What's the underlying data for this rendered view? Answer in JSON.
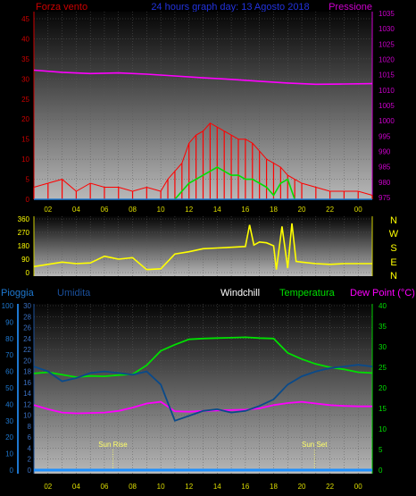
{
  "header": {
    "wind_title": "Forza vento",
    "date_title": "24 hours graph day:  13 Agosto  2018",
    "pressure_title": "Pressione"
  },
  "compass_labels": [
    "N",
    "W",
    "S",
    "E",
    "N"
  ],
  "bottom_headers": {
    "rain": "Pioggia",
    "humidity": "Umidita",
    "windchill": "Windchill",
    "temperature": "Temperatura",
    "dewpoint": "Dew Point (°C)"
  },
  "annotations": {
    "sunrise": "Sun Rise",
    "sunset": "Sun Set"
  },
  "colors": {
    "wind": "#ff0000",
    "gust_avg": "#00e000",
    "pressure": "#ff00ff",
    "direction": "#ffff00",
    "humidity": "#0a4a8a",
    "temperature": "#00e000",
    "dewpoint": "#ff00ff",
    "rain": "#1e90ff",
    "axis_left": "#cc0000",
    "axis_right": "#cc00cc",
    "axis_blue": "#1e78d0"
  },
  "chart_data": [
    {
      "type": "line",
      "name": "wind-and-pressure",
      "x_ticks": [
        "02",
        "04",
        "06",
        "08",
        "10",
        "12",
        "14",
        "16",
        "18",
        "20",
        "22",
        "00"
      ],
      "y_left_ticks": [
        "0",
        "5",
        "10",
        "15",
        "20",
        "25",
        "30",
        "35",
        "40",
        "45"
      ],
      "y_left_range": [
        0,
        45
      ],
      "y_right_ticks": [
        "975",
        "980",
        "985",
        "990",
        "995",
        "1000",
        "1005",
        "1010",
        "1015",
        "1020",
        "1025",
        "1030",
        "1035"
      ],
      "y_right_range": [
        975,
        1035
      ],
      "x_range": [
        1,
        25
      ],
      "series": [
        {
          "name": "wind_speed",
          "values": [
            [
              1,
              3
            ],
            [
              2,
              4
            ],
            [
              3,
              5
            ],
            [
              4,
              2
            ],
            [
              5,
              4
            ],
            [
              6,
              3
            ],
            [
              7,
              3
            ],
            [
              8,
              2
            ],
            [
              9,
              3
            ],
            [
              10,
              2
            ],
            [
              10.5,
              5
            ],
            [
              11,
              7
            ],
            [
              11.5,
              9
            ],
            [
              12,
              14
            ],
            [
              12.5,
              16
            ],
            [
              13,
              17
            ],
            [
              13.5,
              19
            ],
            [
              14,
              18
            ],
            [
              14.5,
              17
            ],
            [
              15,
              16
            ],
            [
              15.5,
              15
            ],
            [
              16,
              15
            ],
            [
              16.5,
              14
            ],
            [
              17,
              12
            ],
            [
              17.5,
              10
            ],
            [
              18,
              9
            ],
            [
              18.5,
              8
            ],
            [
              19,
              6
            ],
            [
              19.5,
              5
            ],
            [
              20,
              4
            ],
            [
              21,
              3
            ],
            [
              22,
              2
            ],
            [
              23,
              2
            ],
            [
              24,
              2
            ],
            [
              25,
              1
            ]
          ]
        },
        {
          "name": "wind_gust_avg",
          "values": [
            [
              11,
              0
            ],
            [
              11.5,
              2
            ],
            [
              12,
              4
            ],
            [
              12.5,
              5
            ],
            [
              13,
              6
            ],
            [
              13.5,
              7
            ],
            [
              14,
              8
            ],
            [
              14.5,
              7
            ],
            [
              15,
              6
            ],
            [
              15.5,
              6
            ],
            [
              16,
              5
            ],
            [
              16.5,
              5
            ],
            [
              17,
              4
            ],
            [
              17.5,
              3
            ],
            [
              18,
              1
            ],
            [
              18.5,
              4
            ],
            [
              19,
              5
            ],
            [
              19.5,
              0
            ]
          ]
        },
        {
          "name": "pressure",
          "values": [
            [
              1,
              1016.5
            ],
            [
              3,
              1015.8
            ],
            [
              5,
              1015.4
            ],
            [
              7,
              1015.6
            ],
            [
              9,
              1015.2
            ],
            [
              11,
              1014.6
            ],
            [
              13,
              1014.0
            ],
            [
              15,
              1013.5
            ],
            [
              17,
              1012.9
            ],
            [
              19,
              1012.3
            ],
            [
              21,
              1011.9
            ],
            [
              23,
              1012.0
            ],
            [
              25,
              1012.1
            ]
          ]
        }
      ]
    },
    {
      "type": "line",
      "name": "wind-direction",
      "x_range": [
        1,
        25
      ],
      "y_ticks": [
        "0",
        "90",
        "180",
        "270",
        "360"
      ],
      "y_range": [
        0,
        360
      ],
      "series": [
        {
          "name": "direction",
          "values": [
            [
              1,
              40
            ],
            [
              2,
              55
            ],
            [
              3,
              70
            ],
            [
              4,
              60
            ],
            [
              5,
              65
            ],
            [
              6,
              110
            ],
            [
              7,
              90
            ],
            [
              8,
              100
            ],
            [
              9,
              20
            ],
            [
              10,
              25
            ],
            [
              11,
              125
            ],
            [
              12,
              140
            ],
            [
              13,
              160
            ],
            [
              14,
              165
            ],
            [
              15,
              170
            ],
            [
              16,
              175
            ],
            [
              16.3,
              320
            ],
            [
              16.6,
              185
            ],
            [
              17,
              205
            ],
            [
              17.5,
              200
            ],
            [
              18,
              180
            ],
            [
              18.2,
              20
            ],
            [
              18.6,
              310
            ],
            [
              19,
              30
            ],
            [
              19.3,
              330
            ],
            [
              19.6,
              75
            ],
            [
              20,
              70
            ],
            [
              21,
              60
            ],
            [
              22,
              55
            ],
            [
              23,
              60
            ],
            [
              24,
              60
            ],
            [
              25,
              60
            ]
          ]
        }
      ]
    },
    {
      "type": "line",
      "name": "humidity-temperature-dewpoint",
      "x_ticks": [
        "02",
        "04",
        "06",
        "08",
        "10",
        "12",
        "14",
        "16",
        "18",
        "20",
        "22",
        "00"
      ],
      "x_range": [
        1,
        25
      ],
      "y_left_outer_ticks": [
        "0",
        "10",
        "20",
        "30",
        "40",
        "50",
        "60",
        "70",
        "80",
        "90",
        "100"
      ],
      "y_left_outer_range": [
        0,
        100
      ],
      "y_left_inner_ticks": [
        "0",
        "2",
        "4",
        "6",
        "8",
        "10",
        "12",
        "14",
        "16",
        "18",
        "20",
        "22",
        "24",
        "26",
        "28",
        "30"
      ],
      "y_left_inner_range": [
        0,
        30
      ],
      "y_right_ticks": [
        "0",
        "5",
        "10",
        "15",
        "20",
        "25",
        "30",
        "35",
        "40"
      ],
      "y_right_range": [
        0,
        40
      ],
      "series": [
        {
          "name": "humidity",
          "values": [
            [
              1,
              63
            ],
            [
              2,
              60
            ],
            [
              3,
              54
            ],
            [
              4,
              56
            ],
            [
              5,
              59
            ],
            [
              6,
              60
            ],
            [
              7,
              59
            ],
            [
              8,
              58
            ],
            [
              9,
              60
            ],
            [
              10,
              52
            ],
            [
              11,
              30
            ],
            [
              12,
              33
            ],
            [
              13,
              36
            ],
            [
              14,
              37
            ],
            [
              15,
              35
            ],
            [
              16,
              36
            ],
            [
              17,
              39
            ],
            [
              18,
              43
            ],
            [
              19,
              52
            ],
            [
              20,
              57
            ],
            [
              21,
              60
            ],
            [
              22,
              62
            ],
            [
              23,
              63
            ],
            [
              24,
              64
            ],
            [
              25,
              63
            ]
          ]
        },
        {
          "name": "temperature",
          "values": [
            [
              1,
              23.5
            ],
            [
              2,
              23.8
            ],
            [
              3,
              23.2
            ],
            [
              4,
              22.6
            ],
            [
              5,
              22.9
            ],
            [
              6,
              22.8
            ],
            [
              7,
              23.1
            ],
            [
              8,
              23.3
            ],
            [
              9,
              25.5
            ],
            [
              10,
              29.0
            ],
            [
              11,
              30.5
            ],
            [
              12,
              31.8
            ],
            [
              13,
              32.0
            ],
            [
              14,
              32.1
            ],
            [
              15,
              32.2
            ],
            [
              16,
              32.3
            ],
            [
              17,
              32.1
            ],
            [
              18,
              32.0
            ],
            [
              19,
              28.5
            ],
            [
              20,
              27.0
            ],
            [
              21,
              25.8
            ],
            [
              22,
              25.0
            ],
            [
              23,
              24.5
            ],
            [
              24,
              23.8
            ],
            [
              25,
              23.6
            ]
          ]
        },
        {
          "name": "dewpoint",
          "values": [
            [
              1,
              15.8
            ],
            [
              2,
              14.8
            ],
            [
              3,
              14.0
            ],
            [
              4,
              13.8
            ],
            [
              5,
              13.9
            ],
            [
              6,
              14.0
            ],
            [
              7,
              14.4
            ],
            [
              8,
              15.2
            ],
            [
              9,
              16.2
            ],
            [
              10,
              16.6
            ],
            [
              11,
              14.3
            ],
            [
              12,
              14.2
            ],
            [
              13,
              14.4
            ],
            [
              14,
              14.5
            ],
            [
              15,
              14.6
            ],
            [
              16,
              14.7
            ],
            [
              17,
              15.0
            ],
            [
              18,
              15.8
            ],
            [
              19,
              16.3
            ],
            [
              20,
              16.6
            ],
            [
              21,
              16.2
            ],
            [
              22,
              15.8
            ],
            [
              23,
              15.6
            ],
            [
              24,
              15.5
            ],
            [
              25,
              15.5
            ]
          ]
        },
        {
          "name": "rain",
          "values": [
            [
              1,
              0
            ],
            [
              25,
              0
            ]
          ]
        }
      ],
      "sunrise_x": 6.6,
      "sunset_x": 20.9
    }
  ]
}
